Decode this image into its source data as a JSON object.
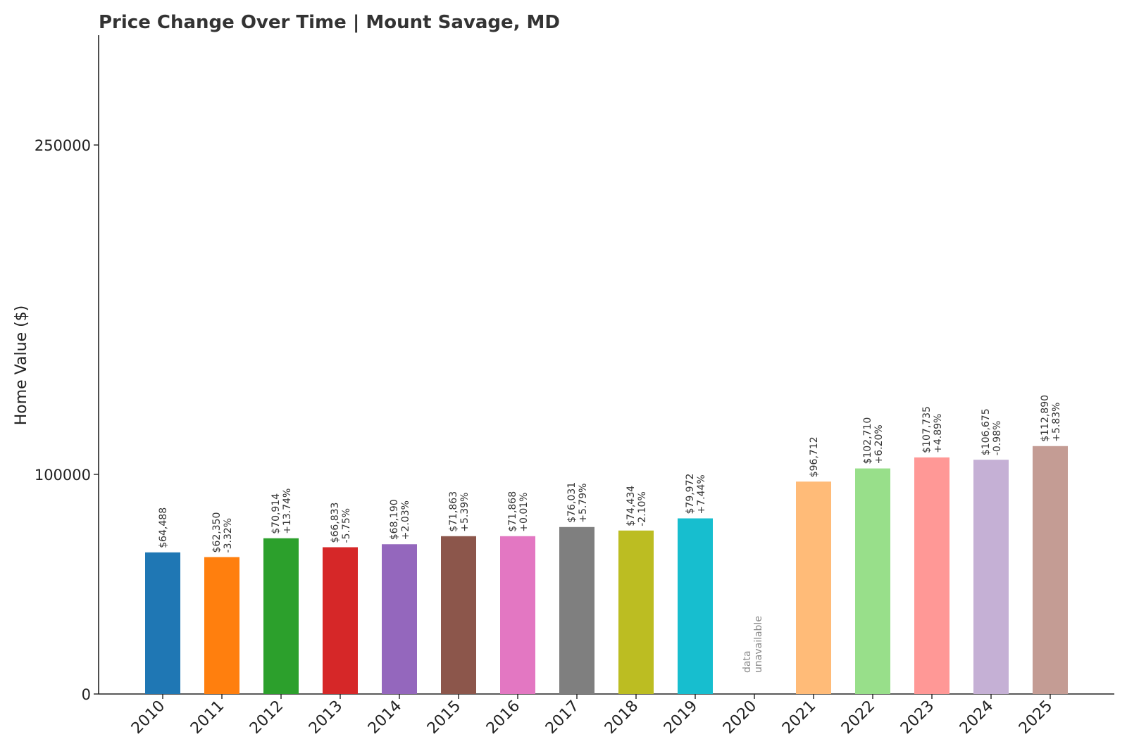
{
  "chart_data": {
    "type": "bar",
    "title": "Price Change Over Time | Mount Savage, MD",
    "xlabel": "",
    "ylabel": "Home Value ($)",
    "ylim": [
      0,
      300000
    ],
    "yticks": [
      0,
      100000,
      250000
    ],
    "ytick_labels": [
      "0",
      "100000",
      "250000"
    ],
    "grid": false,
    "legend": "none",
    "categories": [
      "2010",
      "2011",
      "2012",
      "2013",
      "2014",
      "2015",
      "2016",
      "2017",
      "2018",
      "2019",
      "2020",
      "2021",
      "2022",
      "2023",
      "2024",
      "2025"
    ],
    "values": [
      64488,
      62350,
      70914,
      66833,
      68190,
      71863,
      71868,
      76031,
      74434,
      79972,
      null,
      96712,
      102710,
      107735,
      106675,
      112890
    ],
    "value_labels": [
      "$64,488",
      "$62,350",
      "$70,914",
      "$66,833",
      "$68,190",
      "$71,863",
      "$71,868",
      "$76,031",
      "$74,434",
      "$79,972",
      "",
      "$96,712",
      "$102,710",
      "$107,735",
      "$106,675",
      "$112,890"
    ],
    "change_labels": [
      "",
      "-3.32%",
      "+13.74%",
      "-5.75%",
      "+2.03%",
      "+5.39%",
      "+0.01%",
      "+5.79%",
      "-2.10%",
      "+7.44%",
      "",
      "",
      "+6.20%",
      "+4.89%",
      "-0.98%",
      "+5.83%"
    ],
    "missing_label": [
      "data",
      "unavailable"
    ],
    "colors": [
      "#1f77b4",
      "#ff7f0e",
      "#2ca02c",
      "#d62728",
      "#9467bd",
      "#8c564b",
      "#e377c2",
      "#7f7f7f",
      "#bcbd22",
      "#17becf",
      "#cccccc",
      "#ffbb78",
      "#98df8a",
      "#ff9896",
      "#c5b0d5",
      "#c49c94"
    ]
  }
}
